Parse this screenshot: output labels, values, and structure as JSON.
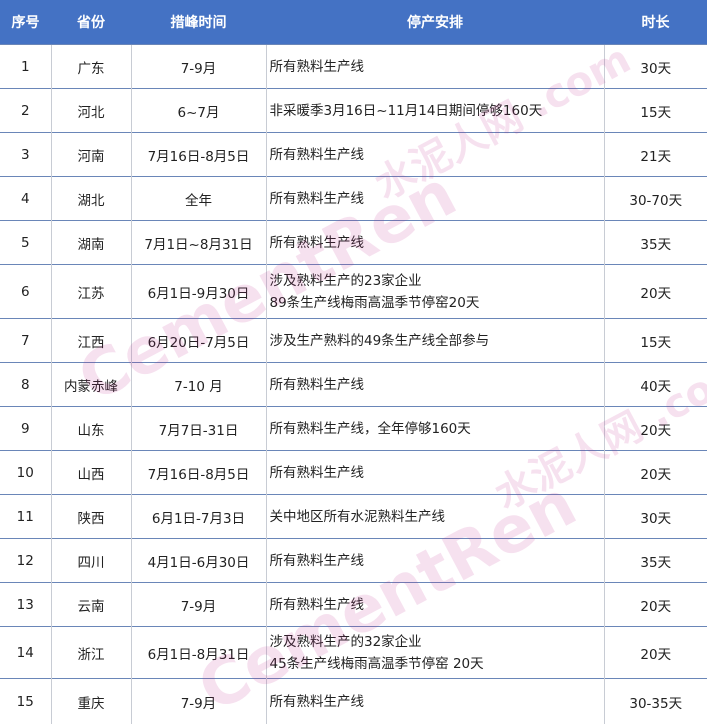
{
  "headers": [
    "序号",
    "省份",
    "措峰时间",
    "停产安排",
    "时长"
  ],
  "rows": [
    {
      "no": "1",
      "province": "广东",
      "period": "7-9月",
      "arrangement": [
        "所有熟料生产线"
      ],
      "duration": "30天"
    },
    {
      "no": "2",
      "province": "河北",
      "period": "6~7月",
      "arrangement": [
        "非采暖季3月16日~11月14日期间停够160天"
      ],
      "duration": "15天"
    },
    {
      "no": "3",
      "province": "河南",
      "period": "7月16日-8月5日",
      "arrangement": [
        "所有熟料生产线"
      ],
      "duration": "21天"
    },
    {
      "no": "4",
      "province": "湖北",
      "period": "全年",
      "arrangement": [
        "所有熟料生产线"
      ],
      "duration": "30-70天"
    },
    {
      "no": "5",
      "province": "湖南",
      "period": "7月1日~8月31日",
      "arrangement": [
        "所有熟料生产线"
      ],
      "duration": "35天"
    },
    {
      "no": "6",
      "province": "江苏",
      "period": "6月1日-9月30日",
      "arrangement": [
        "涉及熟料生产的23家企业",
        "89条生产线梅雨高温季节停窑20天"
      ],
      "duration": "20天"
    },
    {
      "no": "7",
      "province": "江西",
      "period": "6月20日-7月5日",
      "arrangement": [
        "涉及生产熟料的49条生产线全部参与"
      ],
      "duration": "15天"
    },
    {
      "no": "8",
      "province": "内蒙赤峰",
      "period": "7-10 月",
      "arrangement": [
        "所有熟料生产线"
      ],
      "duration": "40天"
    },
    {
      "no": "9",
      "province": "山东",
      "period": "7月7日-31日",
      "arrangement": [
        "所有熟料生产线，全年停够160天"
      ],
      "duration": "20天"
    },
    {
      "no": "10",
      "province": "山西",
      "period": "7月16日-8月5日",
      "arrangement": [
        "所有熟料生产线"
      ],
      "duration": "20天"
    },
    {
      "no": "11",
      "province": "陕西",
      "period": "6月1日-7月3日",
      "arrangement": [
        "关中地区所有水泥熟料生产线"
      ],
      "duration": "30天"
    },
    {
      "no": "12",
      "province": "四川",
      "period": "4月1日-6月30日",
      "arrangement": [
        "所有熟料生产线"
      ],
      "duration": "35天"
    },
    {
      "no": "13",
      "province": "云南",
      "period": "7-9月",
      "arrangement": [
        "所有熟料生产线"
      ],
      "duration": "20天"
    },
    {
      "no": "14",
      "province": "浙江",
      "period": "6月1日-8月31日",
      "arrangement": [
        "涉及熟料生产的32家企业",
        "45条生产线梅雨高温季节停窑 20天"
      ],
      "duration": "20天"
    },
    {
      "no": "15",
      "province": "重庆",
      "period": "7-9月",
      "arrangement": [
        "所有熟料生产线"
      ],
      "duration": "30-35天"
    }
  ],
  "watermark": {
    "cn": "水泥人网",
    "en": "CementRen.com"
  },
  "colors": {
    "header_bg": "#4472c4",
    "header_text": "#ffffff"
  }
}
